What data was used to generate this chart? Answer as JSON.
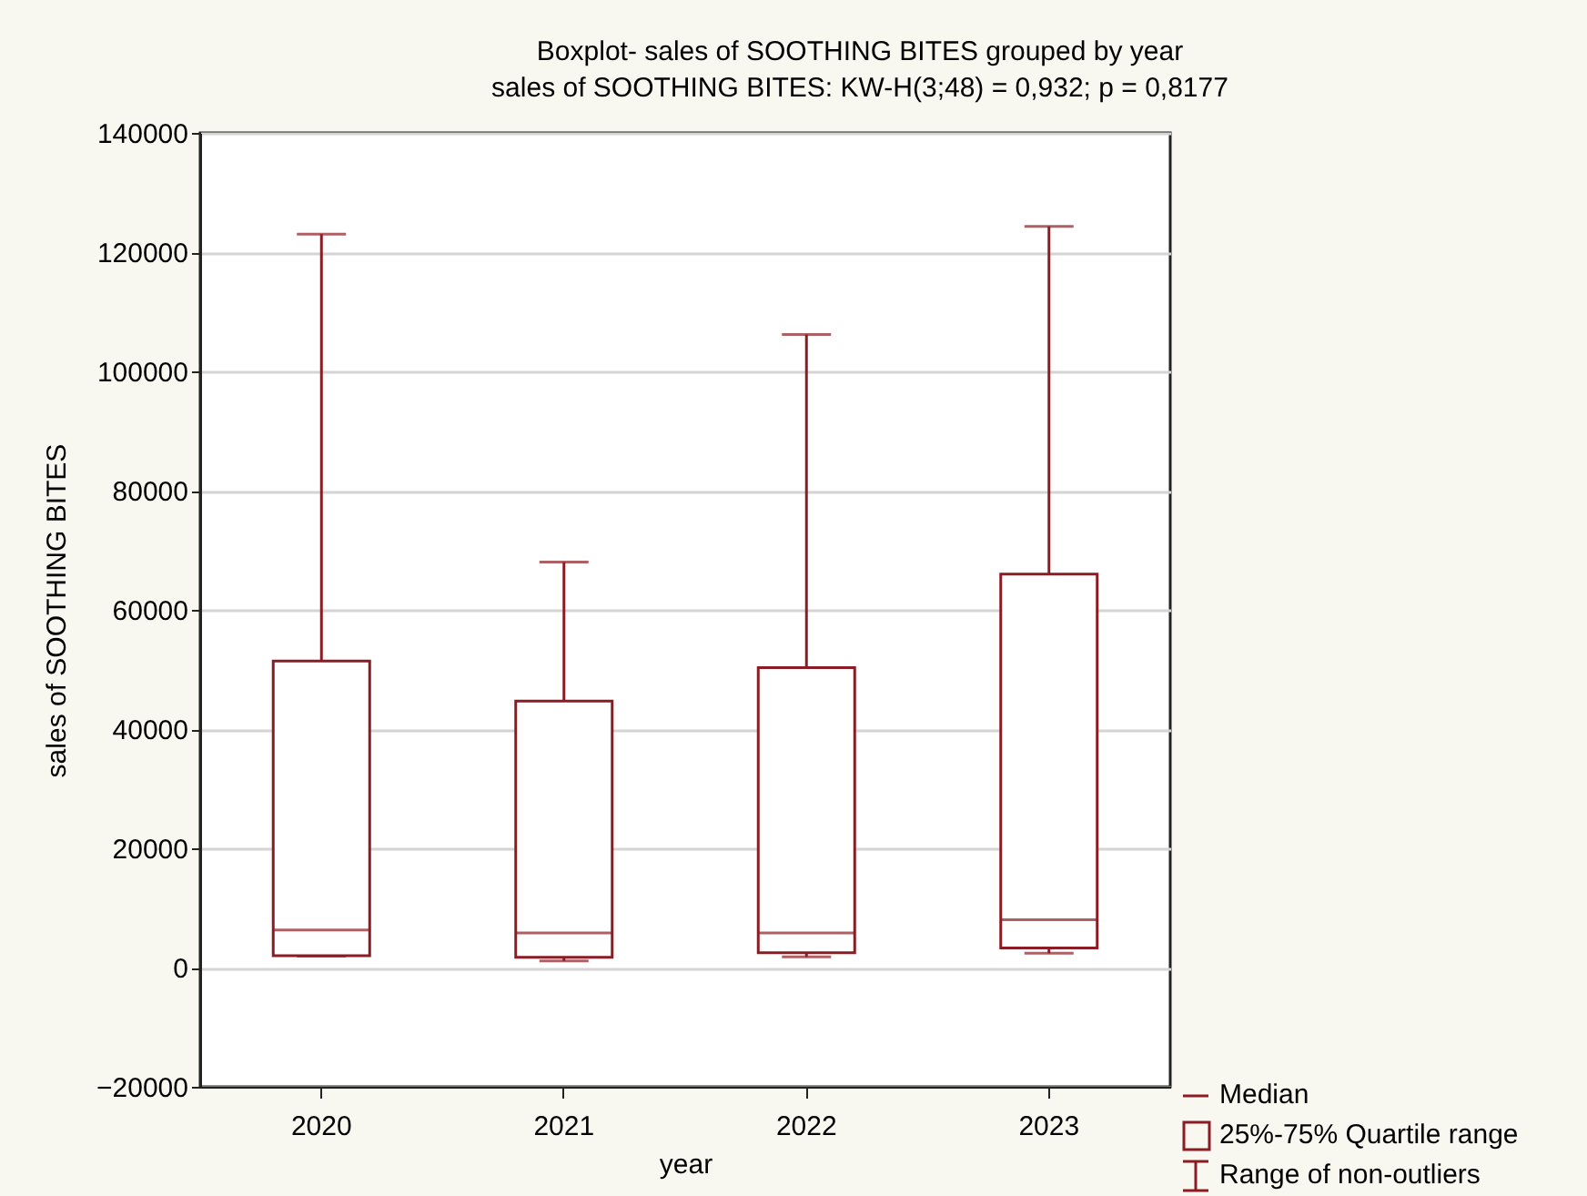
{
  "chart_data": {
    "type": "box",
    "title": "Boxplot- sales of SOOTHING BITES grouped by year",
    "subtitle": "sales of SOOTHING BITES:  KW-H(3;48) = 0,932; p = 0,8177",
    "xlabel": "year",
    "ylabel": "sales of SOOTHING BITES",
    "categories": [
      "2020",
      "2021",
      "2022",
      "2023"
    ],
    "series": [
      {
        "color": "#8b1c24",
        "boxes": [
          {
            "low": 1900,
            "q1": 2000,
            "median": 6300,
            "q3": 51400,
            "high": 123000
          },
          {
            "low": 1100,
            "q1": 1700,
            "median": 5800,
            "q3": 44700,
            "high": 68000
          },
          {
            "low": 1800,
            "q1": 2500,
            "median": 5800,
            "q3": 50300,
            "high": 106200
          },
          {
            "low": 2400,
            "q1": 3300,
            "median": 8000,
            "q3": 66000,
            "high": 124300
          }
        ]
      }
    ],
    "ylim": [
      -20000,
      140000
    ],
    "yticks": [
      -20000,
      0,
      20000,
      40000,
      60000,
      80000,
      100000,
      120000,
      140000
    ],
    "grid": "y",
    "annotations": [
      "Median",
      "25%-75% Quartile range",
      "Range of non-outliers"
    ]
  }
}
